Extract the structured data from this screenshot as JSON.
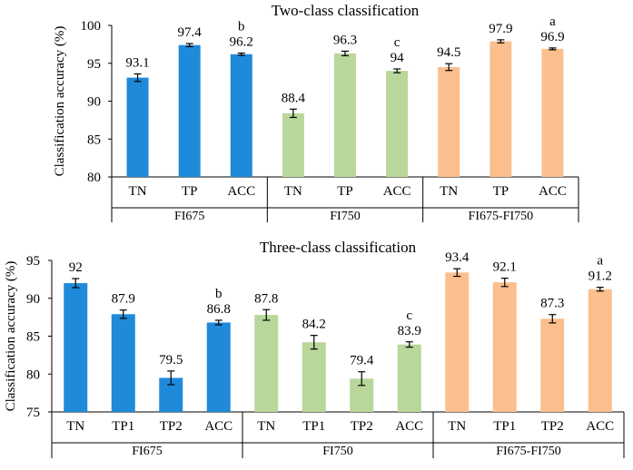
{
  "chart_data": [
    {
      "type": "bar",
      "title": "Two-class classification",
      "ylabel": "Classification accuracy (%)",
      "xlabel": "",
      "ylim": [
        80,
        100
      ],
      "yticks": [
        80,
        85,
        90,
        95,
        100
      ],
      "grid": false,
      "groups": [
        {
          "name": "FI675",
          "color": "#1f8ad9",
          "bars": [
            {
              "category": "TN",
              "value": 93.1,
              "error": 0.5,
              "label": "93.1",
              "letter": ""
            },
            {
              "category": "TP",
              "value": 97.4,
              "error": 0.2,
              "label": "97.4",
              "letter": ""
            },
            {
              "category": "ACC",
              "value": 96.2,
              "error": 0.15,
              "label": "96.2",
              "letter": "b"
            }
          ]
        },
        {
          "name": "FI750",
          "color": "#b9d79b",
          "bars": [
            {
              "category": "TN",
              "value": 88.4,
              "error": 0.55,
              "label": "88.4",
              "letter": ""
            },
            {
              "category": "TP",
              "value": 96.3,
              "error": 0.3,
              "label": "96.3",
              "letter": ""
            },
            {
              "category": "ACC",
              "value": 94.0,
              "error": 0.25,
              "label": "94",
              "letter": "c"
            }
          ]
        },
        {
          "name": "FI675-FI750",
          "color": "#fbbf8d",
          "bars": [
            {
              "category": "TN",
              "value": 94.5,
              "error": 0.45,
              "label": "94.5",
              "letter": ""
            },
            {
              "category": "TP",
              "value": 97.9,
              "error": 0.2,
              "label": "97.9",
              "letter": ""
            },
            {
              "category": "ACC",
              "value": 96.9,
              "error": 0.12,
              "label": "96.9",
              "letter": "a"
            }
          ]
        }
      ]
    },
    {
      "type": "bar",
      "title": "Three-class classification",
      "ylabel": "Classification accuracy (%)",
      "xlabel": "",
      "ylim": [
        75,
        95
      ],
      "yticks": [
        75,
        80,
        85,
        90,
        95
      ],
      "grid": false,
      "groups": [
        {
          "name": "FI675",
          "color": "#1f8ad9",
          "bars": [
            {
              "category": "TN",
              "value": 92.0,
              "error": 0.6,
              "label": "92",
              "letter": ""
            },
            {
              "category": "TP1",
              "value": 87.9,
              "error": 0.55,
              "label": "87.9",
              "letter": ""
            },
            {
              "category": "TP2",
              "value": 79.5,
              "error": 0.9,
              "label": "79.5",
              "letter": ""
            },
            {
              "category": "ACC",
              "value": 86.8,
              "error": 0.3,
              "label": "86.8",
              "letter": "b"
            }
          ]
        },
        {
          "name": "FI750",
          "color": "#b9d79b",
          "bars": [
            {
              "category": "TN",
              "value": 87.8,
              "error": 0.7,
              "label": "87.8",
              "letter": ""
            },
            {
              "category": "TP1",
              "value": 84.2,
              "error": 0.9,
              "label": "84.2",
              "letter": ""
            },
            {
              "category": "TP2",
              "value": 79.4,
              "error": 0.9,
              "label": "79.4",
              "letter": ""
            },
            {
              "category": "ACC",
              "value": 83.9,
              "error": 0.35,
              "label": "83.9",
              "letter": "c"
            }
          ]
        },
        {
          "name": "FI675-FI750",
          "color": "#fbbf8d",
          "bars": [
            {
              "category": "TN",
              "value": 93.4,
              "error": 0.5,
              "label": "93.4",
              "letter": ""
            },
            {
              "category": "TP1",
              "value": 92.1,
              "error": 0.55,
              "label": "92.1",
              "letter": ""
            },
            {
              "category": "TP2",
              "value": 87.3,
              "error": 0.55,
              "label": "87.3",
              "letter": ""
            },
            {
              "category": "ACC",
              "value": 91.2,
              "error": 0.25,
              "label": "91.2",
              "letter": "a"
            }
          ]
        }
      ]
    }
  ]
}
